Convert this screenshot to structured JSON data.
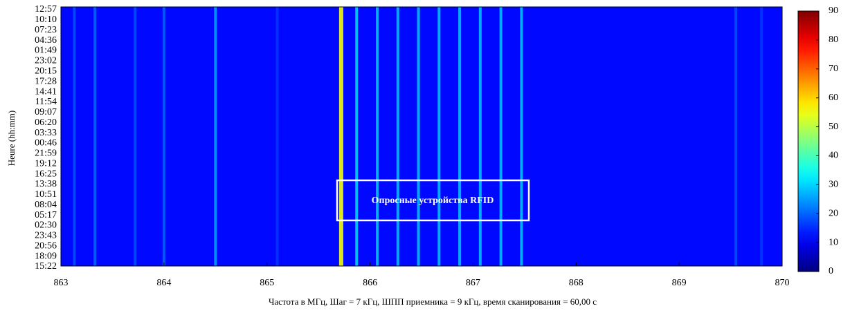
{
  "chart_data": {
    "type": "heatmap",
    "xlabel": "Частота в МГц, Шаг = 7 кГц, ШПП приемника = 9 кГц, время сканирования = 60,00 с",
    "ylabel": "Heure (hh:mm)",
    "annotation": "Опросные устройства RFID",
    "xlim": [
      863,
      870
    ],
    "xticks": [
      863,
      864,
      865,
      866,
      867,
      868,
      869,
      870
    ],
    "y_labels": [
      "12:57",
      "10:10",
      "07:23",
      "04:36",
      "01:49",
      "23:02",
      "20:15",
      "17:28",
      "14:41",
      "11:54",
      "09:07",
      "06:20",
      "03:33",
      "00:46",
      "21:59",
      "19:12",
      "16:25",
      "13:38",
      "10:51",
      "08:04",
      "05:17",
      "02:30",
      "23:43",
      "20:56",
      "18:09",
      "15:22"
    ],
    "clim": [
      0,
      90
    ],
    "cticks": [
      0,
      10,
      20,
      30,
      40,
      50,
      60,
      70,
      80,
      90
    ],
    "background_value": 12,
    "columns": {
      "x": [
        863.13,
        863.33,
        863.72,
        864.0,
        864.5,
        865.1,
        865.72,
        865.87,
        866.07,
        866.27,
        866.47,
        866.67,
        866.87,
        867.07,
        867.27,
        867.47,
        869.55,
        869.8
      ],
      "values": [
        18,
        20,
        18,
        20,
        25,
        16,
        55,
        30,
        28,
        28,
        28,
        28,
        28,
        28,
        28,
        28,
        18,
        16
      ]
    }
  }
}
